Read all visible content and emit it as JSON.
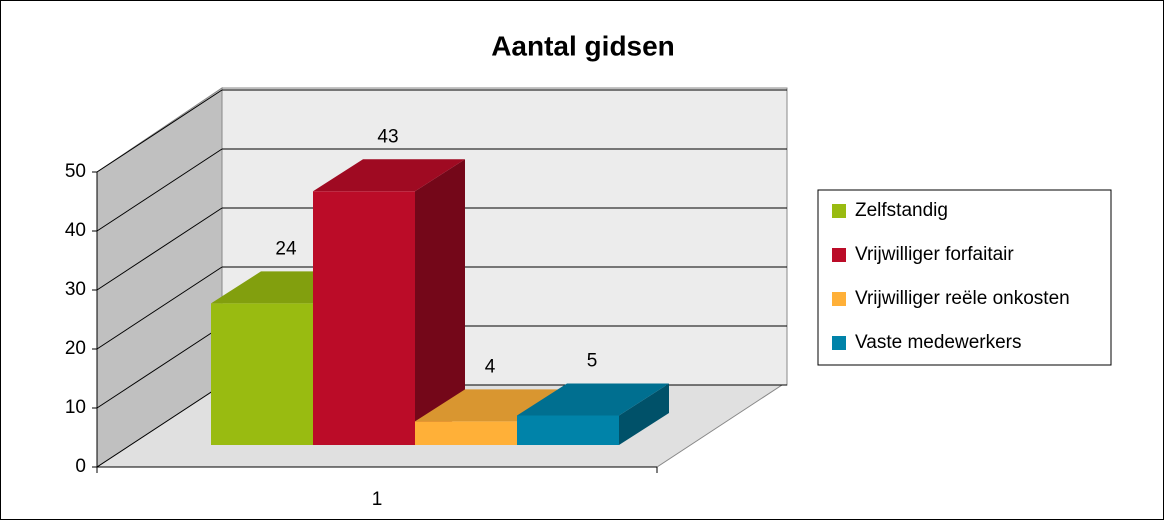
{
  "chart_data": {
    "type": "bar",
    "title": "Aantal gidsen",
    "categories": [
      "1"
    ],
    "series": [
      {
        "name": "Zelfstandig",
        "color": "#99bb11",
        "values": [
          24
        ]
      },
      {
        "name": "Vrijwilliger forfaitair",
        "color": "#bb0c28",
        "values": [
          43
        ]
      },
      {
        "name": "Vrijwilliger reële onkosten",
        "color": "#ffb038",
        "values": [
          4
        ]
      },
      {
        "name": "Vaste medewerkers",
        "color": "#0083a9",
        "values": [
          5
        ]
      }
    ],
    "ylim": [
      0,
      50
    ],
    "yticks": [
      0,
      10,
      20,
      30,
      40,
      50
    ],
    "grid": true,
    "legend": "right"
  }
}
